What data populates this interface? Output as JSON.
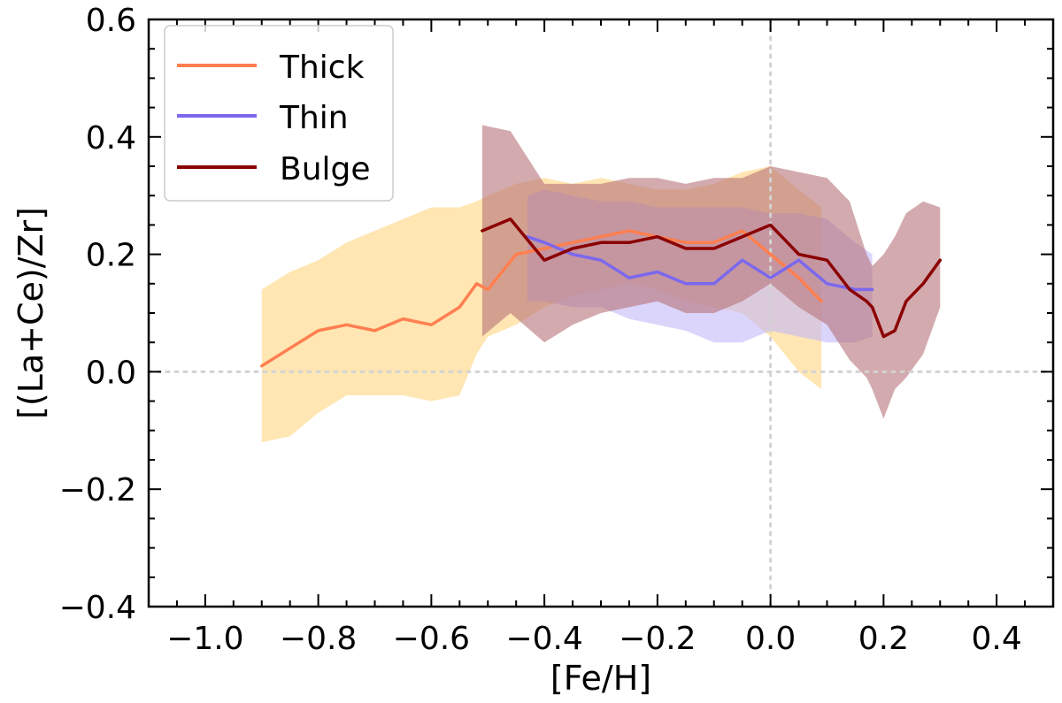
{
  "chart_data": {
    "type": "line",
    "xlabel": "[Fe/H]",
    "ylabel": "[(La+Ce)/Zr]",
    "xlim": [
      -1.1,
      0.5
    ],
    "ylim": [
      -0.4,
      0.6
    ],
    "xticks": [
      -1.0,
      -0.8,
      -0.6,
      -0.4,
      -0.2,
      0.0,
      0.2,
      0.4
    ],
    "yticks": [
      -0.4,
      -0.2,
      0.0,
      0.2,
      0.4,
      0.6
    ],
    "xtick_labels": [
      "−1.0",
      "−0.8",
      "−0.6",
      "−0.4",
      "−0.2",
      "0.0",
      "0.2",
      "0.4"
    ],
    "ytick_labels": [
      "−0.4",
      "−0.2",
      "0.0",
      "0.2",
      "0.4",
      "0.6"
    ],
    "reference_lines": {
      "x": 0.0,
      "y": 0.0,
      "style": "dotted",
      "color": "#d3d3d3"
    },
    "legend_position": "top-left",
    "series": [
      {
        "name": "Thick",
        "color": "#ff7f50",
        "band_color": "#ffd57e",
        "x": [
          -0.9,
          -0.85,
          -0.8,
          -0.75,
          -0.7,
          -0.65,
          -0.6,
          -0.55,
          -0.52,
          -0.5,
          -0.45,
          -0.4,
          -0.35,
          -0.3,
          -0.25,
          -0.2,
          -0.15,
          -0.1,
          -0.05,
          0.0,
          0.05,
          0.09
        ],
        "y": [
          0.01,
          0.04,
          0.07,
          0.08,
          0.07,
          0.09,
          0.08,
          0.11,
          0.15,
          0.14,
          0.2,
          0.21,
          0.22,
          0.23,
          0.24,
          0.23,
          0.22,
          0.22,
          0.24,
          0.2,
          0.16,
          0.12
        ],
        "lower": [
          -0.12,
          -0.11,
          -0.07,
          -0.04,
          -0.04,
          -0.04,
          -0.05,
          -0.04,
          0.03,
          0.06,
          0.08,
          0.11,
          0.13,
          0.14,
          0.15,
          0.14,
          0.12,
          0.11,
          0.1,
          0.06,
          0.0,
          -0.03
        ],
        "upper": [
          0.14,
          0.17,
          0.19,
          0.22,
          0.24,
          0.26,
          0.28,
          0.28,
          0.29,
          0.3,
          0.32,
          0.33,
          0.32,
          0.33,
          0.32,
          0.31,
          0.31,
          0.32,
          0.34,
          0.35,
          0.31,
          0.28
        ]
      },
      {
        "name": "Thin",
        "color": "#7b68ee",
        "band_color": "#c3b8f8",
        "x": [
          -0.43,
          -0.4,
          -0.35,
          -0.3,
          -0.25,
          -0.2,
          -0.15,
          -0.1,
          -0.05,
          0.0,
          0.05,
          0.1,
          0.15,
          0.18
        ],
        "y": [
          0.23,
          0.22,
          0.2,
          0.19,
          0.16,
          0.17,
          0.15,
          0.15,
          0.19,
          0.16,
          0.19,
          0.15,
          0.14,
          0.14
        ],
        "lower": [
          0.12,
          0.12,
          0.11,
          0.11,
          0.09,
          0.08,
          0.07,
          0.05,
          0.05,
          0.07,
          0.06,
          0.05,
          0.05,
          0.06
        ],
        "upper": [
          0.3,
          0.31,
          0.3,
          0.29,
          0.29,
          0.28,
          0.28,
          0.28,
          0.28,
          0.27,
          0.27,
          0.26,
          0.22,
          0.2
        ]
      },
      {
        "name": "Bulge",
        "color": "#8b0000",
        "band_color": "#b67178",
        "x": [
          -0.51,
          -0.46,
          -0.4,
          -0.35,
          -0.3,
          -0.25,
          -0.2,
          -0.15,
          -0.1,
          -0.05,
          0.0,
          0.05,
          0.1,
          0.14,
          0.17,
          0.18,
          0.2,
          0.22,
          0.24,
          0.27,
          0.3
        ],
        "y": [
          0.24,
          0.26,
          0.19,
          0.21,
          0.22,
          0.22,
          0.23,
          0.21,
          0.21,
          0.23,
          0.25,
          0.2,
          0.19,
          0.14,
          0.12,
          0.11,
          0.06,
          0.07,
          0.12,
          0.15,
          0.19
        ],
        "lower": [
          0.06,
          0.1,
          0.05,
          0.08,
          0.1,
          0.11,
          0.12,
          0.1,
          0.1,
          0.12,
          0.15,
          0.11,
          0.08,
          0.02,
          -0.01,
          -0.03,
          -0.08,
          -0.03,
          -0.01,
          0.03,
          0.11
        ],
        "upper": [
          0.42,
          0.41,
          0.32,
          0.32,
          0.32,
          0.33,
          0.33,
          0.32,
          0.33,
          0.33,
          0.35,
          0.34,
          0.33,
          0.29,
          0.2,
          0.18,
          0.2,
          0.23,
          0.27,
          0.29,
          0.28
        ]
      }
    ]
  }
}
